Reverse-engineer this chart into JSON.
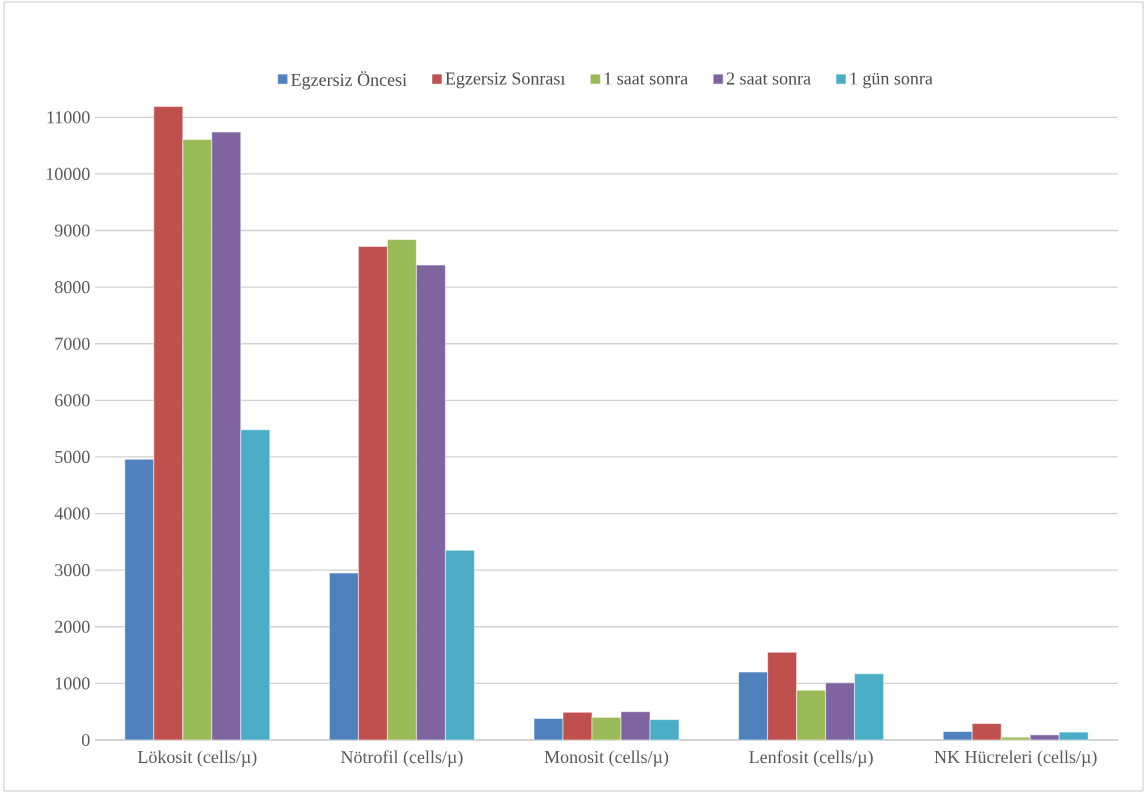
{
  "chart_data": {
    "type": "bar",
    "categories": [
      "Lökosit (cells/µ)",
      "Nötrofil (cells/µ)",
      "Monosit (cells/µ)",
      "Lenfosit (cells/µ)",
      "NK Hücreleri (cells/µ)"
    ],
    "series": [
      {
        "name": "Egzersiz Öncesi",
        "color": "#4f81bd",
        "values": [
          4960,
          2950,
          380,
          1200,
          150
        ]
      },
      {
        "name": "Egzersiz Sonrası",
        "color": "#c0504d",
        "values": [
          11190,
          8720,
          490,
          1550,
          290
        ]
      },
      {
        "name": "1 saat sonra",
        "color": "#9bbb59",
        "values": [
          10610,
          8840,
          400,
          880,
          50
        ]
      },
      {
        "name": "2 saat sonra",
        "color": "#8064a2",
        "values": [
          10740,
          8390,
          500,
          1010,
          90
        ]
      },
      {
        "name": "1 gün sonra",
        "color": "#4bacc6",
        "values": [
          5480,
          3350,
          360,
          1170,
          140
        ]
      }
    ],
    "ylim": [
      0,
      11200
    ],
    "yticks": [
      0,
      1000,
      2000,
      3000,
      4000,
      5000,
      6000,
      7000,
      8000,
      9000,
      10000,
      11000
    ],
    "grid": "y",
    "legend": "top"
  }
}
